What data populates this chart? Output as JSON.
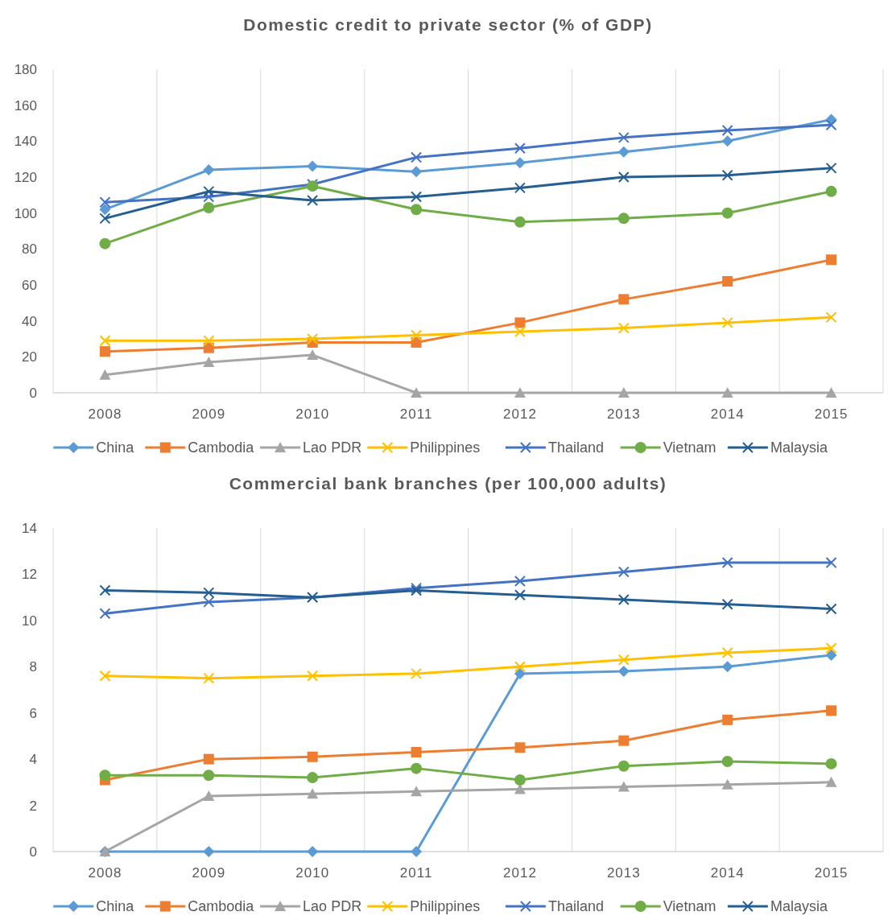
{
  "chart_data": [
    {
      "type": "line",
      "title": "Domestic credit to private sector (% of GDP)",
      "categories": [
        "2008",
        "2009",
        "2010",
        "2011",
        "2012",
        "2013",
        "2014",
        "2015"
      ],
      "ylim": [
        0,
        180
      ],
      "yticks": [
        0,
        20,
        40,
        60,
        80,
        100,
        120,
        140,
        160,
        180
      ],
      "grid": "x",
      "legend": "bottom",
      "series": [
        {
          "name": "China",
          "color": "#5b9bd5",
          "marker": "diamond",
          "values": [
            102,
            124,
            126,
            123,
            128,
            134,
            140,
            152
          ]
        },
        {
          "name": "Cambodia",
          "color": "#ed7d31",
          "marker": "square",
          "values": [
            23,
            25,
            28,
            28,
            39,
            52,
            62,
            74
          ]
        },
        {
          "name": "Lao PDR",
          "color": "#a5a5a5",
          "marker": "triangle",
          "values": [
            10,
            17,
            21,
            0,
            0,
            0,
            0,
            0
          ]
        },
        {
          "name": "Philippines",
          "color": "#ffc000",
          "marker": "cross",
          "values": [
            29,
            29,
            30,
            32,
            34,
            36,
            39,
            42
          ]
        },
        {
          "name": "Thailand",
          "color": "#4472c4",
          "marker": "cross",
          "values": [
            106,
            109,
            116,
            131,
            136,
            142,
            146,
            149
          ]
        },
        {
          "name": "Vietnam",
          "color": "#70ad47",
          "marker": "circle",
          "values": [
            83,
            103,
            115,
            102,
            95,
            97,
            100,
            112
          ]
        },
        {
          "name": "Malaysia",
          "color": "#255e91",
          "marker": "cross",
          "values": [
            97,
            112,
            107,
            109,
            114,
            120,
            121,
            125
          ]
        }
      ]
    },
    {
      "type": "line",
      "title": "Commercial bank branches (per 100,000 adults)",
      "categories": [
        "2008",
        "2009",
        "2010",
        "2011",
        "2012",
        "2013",
        "2014",
        "2015"
      ],
      "ylim": [
        0,
        14
      ],
      "yticks": [
        0,
        2,
        4,
        6,
        8,
        10,
        12,
        14
      ],
      "grid": "x",
      "legend": "bottom",
      "series": [
        {
          "name": "China",
          "color": "#5b9bd5",
          "marker": "diamond",
          "values": [
            0,
            0,
            0,
            0,
            7.7,
            7.8,
            8.0,
            8.5
          ]
        },
        {
          "name": "Cambodia",
          "color": "#ed7d31",
          "marker": "square",
          "values": [
            3.1,
            4.0,
            4.1,
            4.3,
            4.5,
            4.8,
            5.7,
            6.1
          ]
        },
        {
          "name": "Lao PDR",
          "color": "#a5a5a5",
          "marker": "triangle",
          "values": [
            0,
            2.4,
            2.5,
            2.6,
            2.7,
            2.8,
            2.9,
            3.0
          ]
        },
        {
          "name": "Philippines",
          "color": "#ffc000",
          "marker": "cross",
          "values": [
            7.6,
            7.5,
            7.6,
            7.7,
            8.0,
            8.3,
            8.6,
            8.8
          ]
        },
        {
          "name": "Thailand",
          "color": "#4472c4",
          "marker": "cross",
          "values": [
            10.3,
            10.8,
            11.0,
            11.4,
            11.7,
            12.1,
            12.5,
            12.5
          ]
        },
        {
          "name": "Vietnam",
          "color": "#70ad47",
          "marker": "circle",
          "values": [
            3.3,
            3.3,
            3.2,
            3.6,
            3.1,
            3.7,
            3.9,
            3.8
          ]
        },
        {
          "name": "Malaysia",
          "color": "#255e91",
          "marker": "cross",
          "values": [
            11.3,
            11.2,
            11.0,
            11.3,
            11.1,
            10.9,
            10.7,
            10.5
          ]
        }
      ]
    }
  ]
}
